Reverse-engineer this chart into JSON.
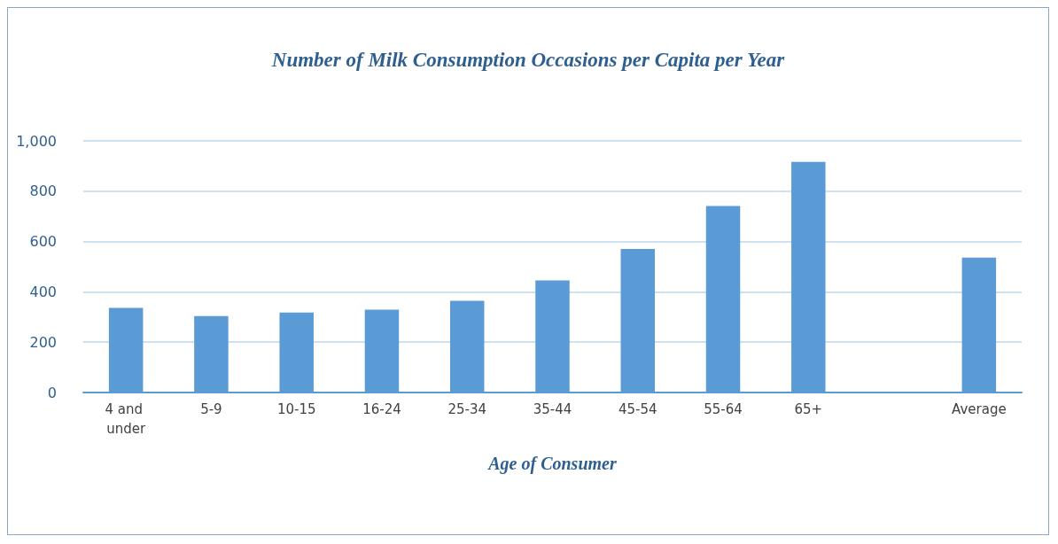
{
  "chart_data": {
    "type": "bar",
    "title": "Number of Milk Consumption Occasions per Capita per Year",
    "xlabel": "Age of Consumer",
    "categories": [
      "4 and under",
      "5-9",
      "10-15",
      "16-24",
      "25-34",
      "35-44",
      "45-54",
      "55-64",
      "65+",
      null,
      "Average"
    ],
    "values": [
      336,
      304,
      318,
      329,
      364,
      445,
      570,
      741,
      916,
      null,
      536
    ],
    "color": "#5b9bd5",
    "ylim": [
      0,
      1000
    ],
    "yticks": [
      0,
      200,
      400,
      600,
      800,
      {
        "value": 1000,
        "label": "1,000"
      }
    ],
    "grid": "y"
  }
}
